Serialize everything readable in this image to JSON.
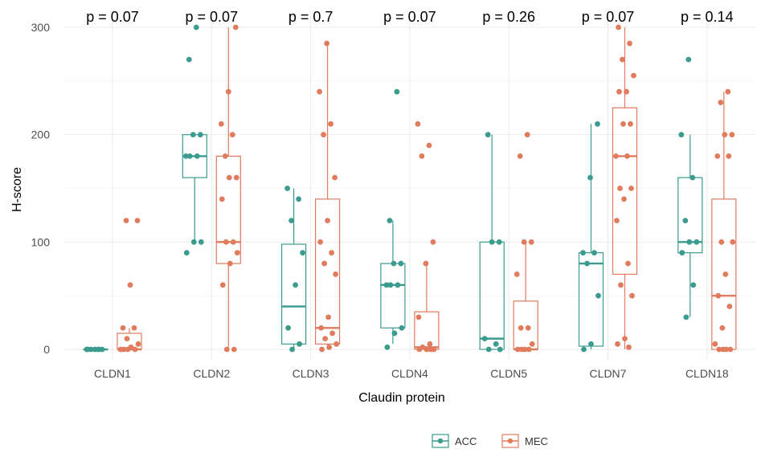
{
  "chart_data": {
    "type": "box",
    "xlabel": "Claudin protein",
    "ylabel": "H-score",
    "ylim": [
      0,
      300
    ],
    "yticks": [
      0,
      100,
      200,
      300
    ],
    "grid": true,
    "legend_position": "bottom",
    "categories": [
      "CLDN1",
      "CLDN2",
      "CLDN3",
      "CLDN4",
      "CLDN5",
      "CLDN7",
      "CLDN18"
    ],
    "p_values": [
      "p = 0.07",
      "p = 0.07",
      "p = 0.7",
      "p = 0.07",
      "p = 0.26",
      "p = 0.07",
      "p = 0.14"
    ],
    "series": [
      {
        "name": "ACC",
        "color": "#3a9b8e",
        "boxes": [
          {
            "lower": 0,
            "q1": 0,
            "median": 0,
            "q3": 0,
            "upper": 0
          },
          {
            "lower": 100,
            "q1": 160,
            "median": 180,
            "q3": 200,
            "upper": 200
          },
          {
            "lower": 0,
            "q1": 5,
            "median": 40,
            "q3": 98,
            "upper": 150
          },
          {
            "lower": 5,
            "q1": 20,
            "median": 60,
            "q3": 80,
            "upper": 120
          },
          {
            "lower": 0,
            "q1": 0,
            "median": 10,
            "q3": 100,
            "upper": 200
          },
          {
            "lower": 0,
            "q1": 3,
            "median": 80,
            "q3": 90,
            "upper": 210
          },
          {
            "lower": 30,
            "q1": 90,
            "median": 100,
            "q3": 160,
            "upper": 200
          }
        ],
        "points": [
          [
            0,
            0,
            0,
            0,
            0,
            0,
            0
          ],
          [
            300,
            270,
            200,
            200,
            180,
            180,
            180,
            100,
            100,
            90
          ],
          [
            150,
            140,
            120,
            90,
            60,
            20,
            5,
            0
          ],
          [
            240,
            120,
            80,
            80,
            60,
            60,
            60,
            20,
            15,
            2
          ],
          [
            200,
            100,
            100,
            10,
            5,
            0,
            0
          ],
          [
            210,
            160,
            90,
            90,
            80,
            50,
            5,
            0
          ],
          [
            270,
            200,
            160,
            120,
            100,
            100,
            90,
            60,
            30
          ]
        ]
      },
      {
        "name": "MEC",
        "color": "#e07b5e",
        "boxes": [
          {
            "lower": 0,
            "q1": 0,
            "median": 0,
            "q3": 15,
            "upper": 20
          },
          {
            "lower": 0,
            "q1": 80,
            "median": 100,
            "q3": 180,
            "upper": 300
          },
          {
            "lower": 0,
            "q1": 5,
            "median": 20,
            "q3": 140,
            "upper": 285
          },
          {
            "lower": 0,
            "q1": 0,
            "median": 2,
            "q3": 35,
            "upper": 80
          },
          {
            "lower": 0,
            "q1": 0,
            "median": 0,
            "q3": 45,
            "upper": 100
          },
          {
            "lower": 0,
            "q1": 70,
            "median": 180,
            "q3": 225,
            "upper": 300
          },
          {
            "lower": 0,
            "q1": 0,
            "median": 50,
            "q3": 140,
            "upper": 240
          }
        ],
        "points": [
          [
            120,
            120,
            60,
            20,
            20,
            10,
            5,
            2,
            0,
            0,
            0,
            0
          ],
          [
            300,
            240,
            210,
            200,
            180,
            160,
            160,
            140,
            100,
            100,
            90,
            80,
            60,
            0,
            0
          ],
          [
            285,
            240,
            210,
            200,
            160,
            120,
            100,
            90,
            80,
            70,
            30,
            20,
            15,
            10,
            5,
            2,
            0
          ],
          [
            210,
            190,
            180,
            100,
            80,
            30,
            5,
            2,
            0,
            0,
            0,
            0
          ],
          [
            200,
            180,
            100,
            100,
            70,
            20,
            20,
            5,
            0,
            0,
            0,
            0
          ],
          [
            300,
            285,
            270,
            255,
            240,
            240,
            210,
            210,
            180,
            180,
            150,
            150,
            140,
            120,
            80,
            60,
            50,
            10,
            5,
            2
          ],
          [
            240,
            230,
            200,
            200,
            180,
            180,
            100,
            100,
            70,
            50,
            40,
            20,
            5,
            0,
            0,
            0,
            0
          ]
        ]
      }
    ]
  }
}
